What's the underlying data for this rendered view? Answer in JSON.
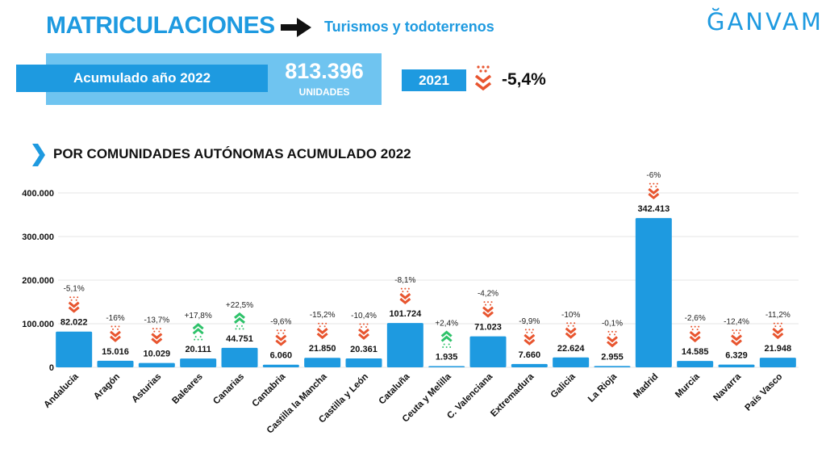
{
  "header": {
    "title": "MATRICULACIONES",
    "subtitle": "Turismos y todoterrenos",
    "logo": "ĞANVAM"
  },
  "summary": {
    "accum_label": "Acumulado año 2022",
    "total_value": "813.396",
    "total_unit": "UNIDADES",
    "compare_year": "2021",
    "compare_change": "-5,4%"
  },
  "colors": {
    "primary": "#1e9ae0",
    "light": "#6fc4f0",
    "down": "#e8552f",
    "up": "#2ec26a"
  },
  "chart_data": {
    "type": "bar",
    "title": "POR COMUNIDADES AUTÓNOMAS ACUMULADO 2022",
    "xlabel": "",
    "ylabel": "",
    "ylim": [
      0,
      400000
    ],
    "yticks": [
      0,
      100000,
      200000,
      300000,
      400000
    ],
    "ytick_labels": [
      "0",
      "100.000",
      "200.000",
      "300.000",
      "400.000"
    ],
    "grid": true,
    "categories": [
      "Andalucía",
      "Aragón",
      "Asturias",
      "Baleares",
      "Canarias",
      "Cantabria",
      "Castilla la Mancha",
      "Castilla y León",
      "Cataluña",
      "Ceuta y Melilla",
      "C. Valenciana",
      "Extremadura",
      "Galicia",
      "La Rioja",
      "Madrid",
      "Murcia",
      "Navarra",
      "País Vasco"
    ],
    "values": [
      82022,
      15016,
      10029,
      20111,
      44751,
      6060,
      21850,
      20361,
      101724,
      1935,
      71023,
      7660,
      22624,
      2955,
      342413,
      14585,
      6329,
      21948
    ],
    "value_labels": [
      "82.022",
      "15.016",
      "10.029",
      "20.111",
      "44.751",
      "6.060",
      "21.850",
      "20.361",
      "101.724",
      "1.935",
      "71.023",
      "7.660",
      "22.624",
      "2.955",
      "342.413",
      "14.585",
      "6.329",
      "21.948"
    ],
    "changes": [
      "-5,1%",
      "-16%",
      "-13,7%",
      "+17,8%",
      "+22,5%",
      "-9,6%",
      "-15,2%",
      "-10,4%",
      "-8,1%",
      "+2,4%",
      "-4,2%",
      "-9,9%",
      "-10%",
      "-0,1%",
      "-6%",
      "-2,6%",
      "-12,4%",
      "-11,2%"
    ],
    "trend": [
      "down",
      "down",
      "down",
      "up",
      "up",
      "down",
      "down",
      "down",
      "down",
      "up",
      "down",
      "down",
      "down",
      "down",
      "down",
      "down",
      "down",
      "down"
    ]
  }
}
